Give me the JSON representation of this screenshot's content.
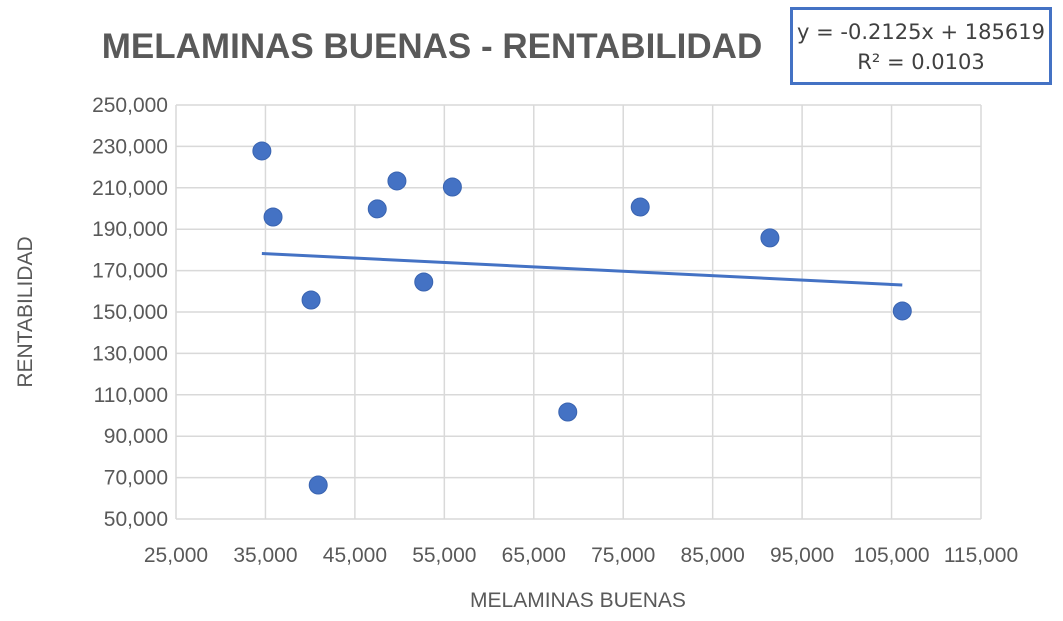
{
  "chart_data": {
    "type": "scatter",
    "title": "MELAMINAS BUENAS - RENTABILIDAD",
    "xlabel": "MELAMINAS BUENAS",
    "ylabel": "RENTABILIDAD",
    "xlim": [
      25000,
      115000
    ],
    "ylim": [
      50000,
      250000
    ],
    "xticks": [
      25000,
      35000,
      45000,
      55000,
      65000,
      75000,
      85000,
      95000,
      105000,
      115000
    ],
    "yticks": [
      50000,
      70000,
      90000,
      110000,
      130000,
      150000,
      170000,
      190000,
      210000,
      230000,
      250000
    ],
    "xtick_labels": [
      "25,000",
      "35,000",
      "45,000",
      "55,000",
      "65,000",
      "75,000",
      "85,000",
      "95,000",
      "105,000",
      "115,000"
    ],
    "ytick_labels": [
      "50,000",
      "70,000",
      "90,000",
      "110,000",
      "130,000",
      "150,000",
      "170,000",
      "190,000",
      "210,000",
      "230,000",
      "250,000"
    ],
    "grid": true,
    "points": [
      {
        "x": 34600,
        "y": 227800
      },
      {
        "x": 35850,
        "y": 195900
      },
      {
        "x": 40100,
        "y": 155800
      },
      {
        "x": 40900,
        "y": 66400
      },
      {
        "x": 47500,
        "y": 199800
      },
      {
        "x": 49700,
        "y": 213300
      },
      {
        "x": 52700,
        "y": 164500
      },
      {
        "x": 55900,
        "y": 210400
      },
      {
        "x": 68800,
        "y": 101700
      },
      {
        "x": 76900,
        "y": 200700
      },
      {
        "x": 91400,
        "y": 185800
      },
      {
        "x": 106200,
        "y": 150500
      }
    ],
    "trendline": {
      "type": "linear",
      "slope": -0.2125,
      "intercept": 185619,
      "equation": "y = -0.2125x + 185619",
      "r_squared": "R² = 0.0103"
    },
    "colors": {
      "marker": "#4472C4",
      "trendline": "#4472C4",
      "grid": "#D9D9D9",
      "text": "#595959"
    }
  }
}
